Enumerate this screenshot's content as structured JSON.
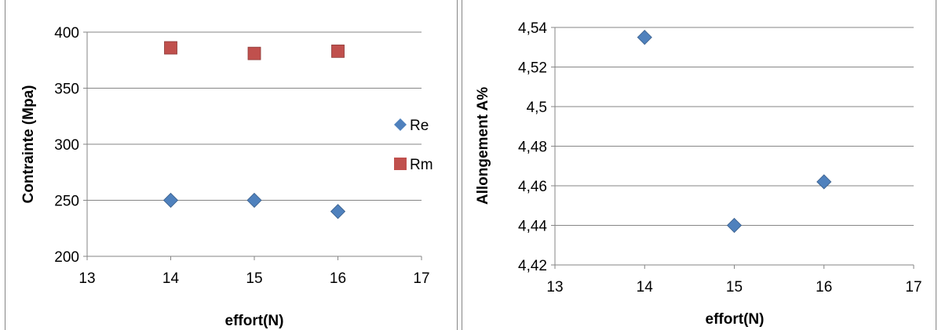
{
  "chart_data": [
    {
      "type": "scatter",
      "xlabel": "effort(N)",
      "ylabel": "Contrainte (Mpa)",
      "xlim": [
        13,
        17
      ],
      "ylim": [
        200,
        400
      ],
      "x_ticks": [
        13,
        14,
        15,
        16,
        17
      ],
      "y_ticks": [
        200,
        250,
        300,
        350,
        400
      ],
      "y_tick_labels": [
        "200",
        "250",
        "300",
        "350",
        "400"
      ],
      "grid": "horizontal",
      "legend": "right",
      "series": [
        {
          "name": "Re",
          "marker": "diamond",
          "color": "#4F81BD",
          "x": [
            14,
            15,
            16
          ],
          "y": [
            250,
            250,
            240
          ]
        },
        {
          "name": "Rm",
          "marker": "square",
          "color": "#C0504D",
          "x": [
            14,
            15,
            16
          ],
          "y": [
            386,
            381,
            383
          ]
        }
      ]
    },
    {
      "type": "scatter",
      "xlabel": "effort(N)",
      "ylabel": "Allongement A%",
      "xlim": [
        13,
        17
      ],
      "ylim": [
        4.42,
        4.54
      ],
      "x_ticks": [
        13,
        14,
        15,
        16,
        17
      ],
      "y_ticks": [
        4.42,
        4.44,
        4.46,
        4.48,
        4.5,
        4.52,
        4.54
      ],
      "y_tick_labels": [
        "4,42",
        "4,44",
        "4,46",
        "4,48",
        "4,5",
        "4,52",
        "4,54"
      ],
      "grid": "horizontal",
      "legend": "none",
      "series": [
        {
          "marker": "diamond",
          "color": "#4F81BD",
          "x": [
            14,
            15,
            16
          ],
          "y": [
            4.535,
            4.44,
            4.462
          ]
        }
      ]
    }
  ]
}
